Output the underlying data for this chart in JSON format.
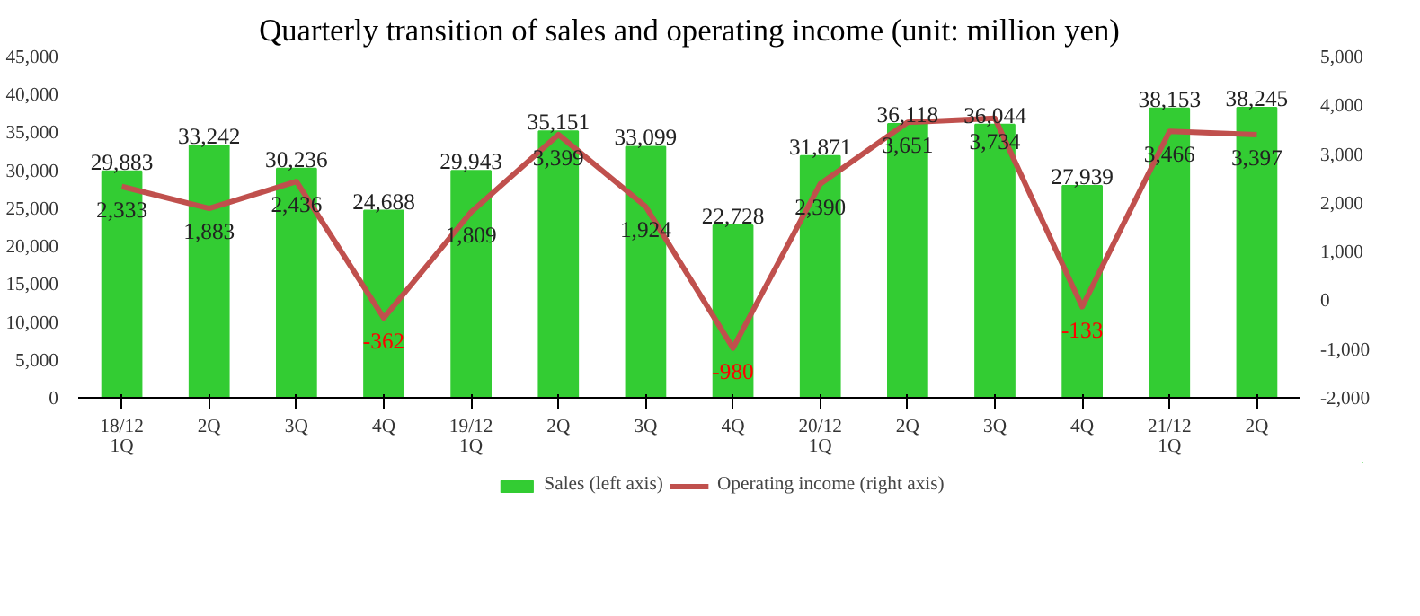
{
  "chart_data": {
    "type": "bar",
    "title": "Quarterly transition of sales and operating income (unit: million yen)",
    "categories": [
      "18/12\n1Q",
      "2Q",
      "3Q",
      "4Q",
      "19/12\n1Q",
      "2Q",
      "3Q",
      "4Q",
      "20/12\n1Q",
      "2Q",
      "3Q",
      "4Q",
      "21/12\n1Q",
      "2Q"
    ],
    "series": [
      {
        "name": "Sales (left axis)",
        "color": "#33cc33",
        "values": [
          29883,
          33242,
          30236,
          24688,
          29943,
          35151,
          33099,
          22728,
          31871,
          36118,
          36044,
          27939,
          38153,
          38245
        ],
        "value_labels": [
          "29,883",
          "33,242",
          "30,236",
          "24,688",
          "29,943",
          "35,151",
          "33,099",
          "22,728",
          "31,871",
          "36,118",
          "36,044",
          "27,939",
          "38,153",
          "38,245"
        ]
      },
      {
        "name": "Operating income (right axis)",
        "type": "line",
        "axis": "y2",
        "color": "#c0504d",
        "values": [
          2333,
          1883,
          2436,
          -362,
          1809,
          3399,
          1924,
          -980,
          2390,
          3651,
          3734,
          -133,
          3466,
          3397
        ],
        "value_labels": [
          "2,333",
          "1,883",
          "2,436",
          "-362",
          "1,809",
          "3,399",
          "1,924",
          "-980",
          "2,390",
          "3,651",
          "3,734",
          "-133",
          "3,466",
          "3,397"
        ]
      }
    ],
    "ylim": [
      0,
      45000
    ],
    "yticks": [
      0,
      {
        "value": 5000,
        "label": "5,000"
      },
      {
        "value": 10000,
        "label": "10,000"
      },
      {
        "value": 15000,
        "label": "15,000"
      },
      {
        "value": 20000,
        "label": "20,000"
      },
      {
        "value": 25000,
        "label": "25,000"
      },
      {
        "value": 30000,
        "label": "30,000"
      },
      {
        "value": 35000,
        "label": "35,000"
      },
      {
        "value": 40000,
        "label": "40,000"
      },
      {
        "value": 45000,
        "label": "45,000"
      }
    ],
    "y2lim": [
      -2000,
      5000
    ],
    "y2ticks": [
      {
        "value": -2000,
        "label": "-2,000"
      },
      {
        "value": -1000,
        "label": "-1,000"
      },
      0,
      {
        "value": 1000,
        "label": "1,000"
      },
      {
        "value": 2000,
        "label": "2,000"
      },
      {
        "value": 3000,
        "label": "3,000"
      },
      {
        "value": 4000,
        "label": "4,000"
      },
      {
        "value": 5000,
        "label": "5,000"
      }
    ],
    "legend": "bottom",
    "data_labels": true,
    "grid": false,
    "marker": "none",
    "line_style": "solid"
  }
}
